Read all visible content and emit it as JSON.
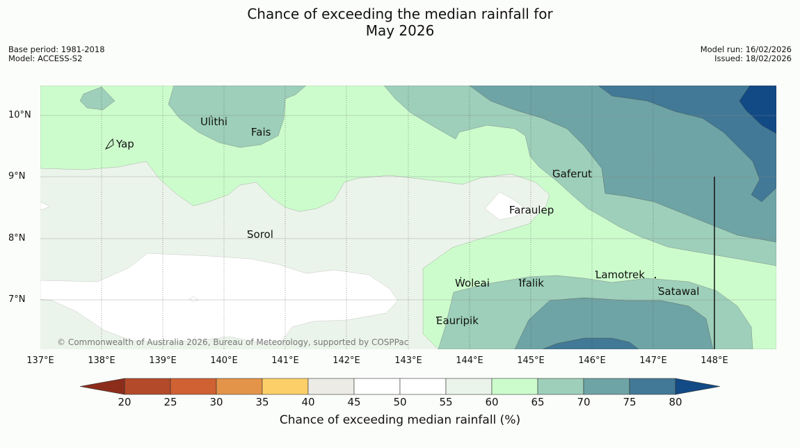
{
  "title": {
    "line1": "Chance of exceeding the median rainfall for",
    "line2": "May 2026"
  },
  "meta_left": {
    "base_period": "Base period: 1981-2018",
    "model": "Model: ACCESS-S2"
  },
  "meta_right": {
    "model_run": "Model run: 16/02/2026",
    "issued": "Issued: 18/02/2026"
  },
  "map": {
    "lat_labels": [
      "10°N",
      "9°N",
      "8°N",
      "7°N"
    ],
    "lon_labels": [
      "137°E",
      "138°E",
      "139°E",
      "140°E",
      "141°E",
      "142°E",
      "143°E",
      "144°E",
      "145°E",
      "146°E",
      "147°E",
      "148°E"
    ],
    "places": [
      "Yap",
      "Ulithi",
      "Fais",
      "Gaferut",
      "Faraulep",
      "Sorol",
      "Woleai",
      "Ifalik",
      "Lamotrek",
      "Satawal",
      "Eauripik"
    ],
    "copyright": "© Commonwealth of Australia 2026, Bureau of Meteorology, supported by COSPPac"
  },
  "colorbar": {
    "title": "Chance of exceeding median rainfall (%)",
    "ticks": [
      "20",
      "25",
      "30",
      "35",
      "40",
      "45",
      "50",
      "55",
      "60",
      "65",
      "70",
      "75",
      "80"
    ],
    "colors": {
      "below_20": "#8c2d1c",
      "20_25": "#b34a2a",
      "25_30": "#cf6132",
      "30_35": "#e39449",
      "35_40": "#fdcf68",
      "40_45": "#ecebe6",
      "45_50": "#ffffff",
      "50_55": "#ffffff",
      "55_60": "#ebf4ea",
      "60_65": "#ccfccc",
      "65_70": "#9dcfba",
      "70_75": "#6ea4a5",
      "75_80": "#417996",
      "above_80": "#124a85"
    }
  }
}
